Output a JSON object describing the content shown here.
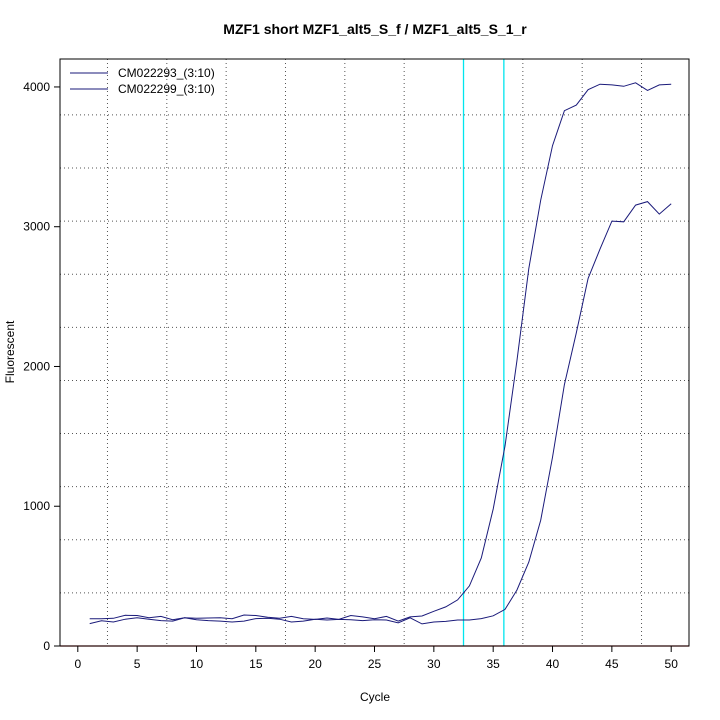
{
  "chart_data": {
    "type": "line",
    "title": "MZF1 short MZF1_alt5_S_f / MZF1_alt5_S_1_r",
    "xlabel": "Cycle",
    "ylabel": "Fluorescent",
    "xlim": [
      -1.5,
      51.5
    ],
    "ylim": [
      0,
      4200
    ],
    "x_ticks": [
      0,
      5,
      10,
      15,
      20,
      25,
      30,
      35,
      40,
      45,
      50
    ],
    "y_ticks": [
      0,
      1000,
      2000,
      3000,
      4000
    ],
    "x_grid": [
      2.5,
      7.5,
      12.5,
      17.5,
      22.5,
      27.5,
      32.5,
      37.5,
      42.5,
      47.5
    ],
    "y_grid": [
      380,
      760,
      1140,
      1520,
      1900,
      2280,
      2660,
      3040,
      3420,
      3800
    ],
    "grid": true,
    "legend_position": "top-left",
    "threshold_lines": [
      32.5,
      35.9
    ],
    "threshold_color": "#00e5ee",
    "baseline_color": "#cc2222",
    "series_color": "#1a1a7a",
    "series": [
      {
        "name": "CM022293_(3:10)",
        "x": [
          1,
          2,
          3,
          4,
          5,
          6,
          7,
          8,
          9,
          10,
          11,
          12,
          13,
          14,
          15,
          16,
          17,
          18,
          19,
          20,
          21,
          22,
          23,
          24,
          25,
          26,
          27,
          28,
          29,
          30,
          31,
          32,
          33,
          34,
          35,
          36,
          37,
          38,
          39,
          40,
          41,
          42,
          43,
          44,
          45,
          46,
          47,
          48,
          49,
          50
        ],
        "values": [
          195,
          195,
          198,
          220,
          218,
          202,
          212,
          188,
          202,
          198,
          200,
          202,
          195,
          222,
          218,
          205,
          198,
          212,
          195,
          190,
          200,
          190,
          218,
          208,
          195,
          212,
          178,
          208,
          215,
          248,
          280,
          330,
          430,
          630,
          980,
          1430,
          2040,
          2700,
          3190,
          3580,
          3830,
          3870,
          3980,
          4020,
          4015,
          4005,
          4030,
          3975,
          4015,
          4020
        ]
      },
      {
        "name": "CM022299_(3:10)",
        "x": [
          1,
          2,
          3,
          4,
          5,
          6,
          7,
          8,
          9,
          10,
          11,
          12,
          13,
          14,
          15,
          16,
          17,
          18,
          19,
          20,
          21,
          22,
          23,
          24,
          25,
          26,
          27,
          28,
          29,
          30,
          31,
          32,
          33,
          34,
          35,
          36,
          37,
          38,
          39,
          40,
          41,
          42,
          43,
          44,
          45,
          46,
          47,
          48,
          49,
          50
        ],
        "values": [
          160,
          180,
          172,
          192,
          202,
          192,
          182,
          178,
          202,
          188,
          182,
          178,
          172,
          178,
          196,
          198,
          192,
          172,
          178,
          192,
          186,
          190,
          188,
          182,
          188,
          186,
          166,
          202,
          158,
          172,
          176,
          186,
          186,
          196,
          216,
          262,
          400,
          600,
          900,
          1350,
          1870,
          2240,
          2630,
          2840,
          3040,
          3035,
          3155,
          3180,
          3090,
          3165
        ]
      }
    ]
  }
}
